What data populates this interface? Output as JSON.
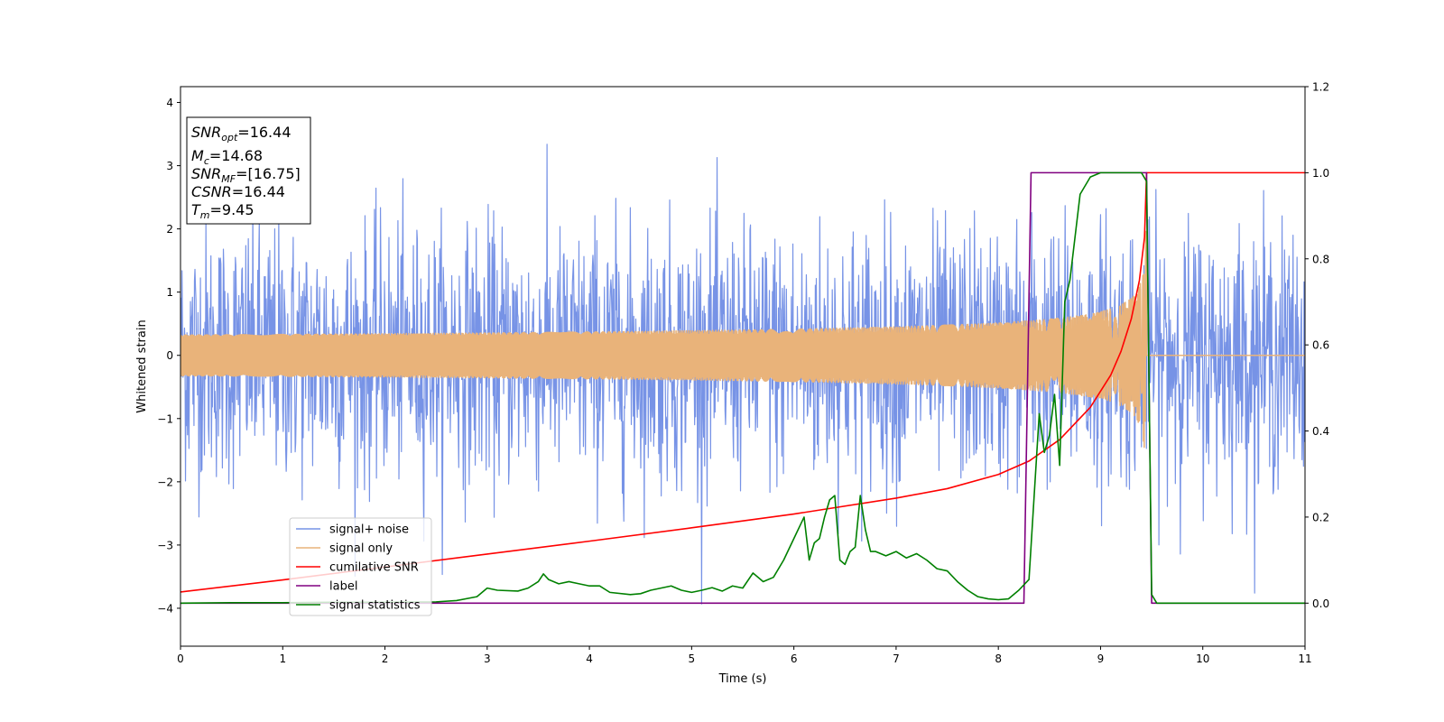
{
  "chart_data": {
    "type": "line",
    "xlabel": "Time (s)",
    "ylabel": "Whitened strain",
    "xlim": [
      0,
      11
    ],
    "ylim": [
      -4.6,
      4.25
    ],
    "y2lim": [
      -0.1,
      1.2
    ],
    "xticks": [
      0,
      1,
      2,
      3,
      4,
      5,
      6,
      7,
      8,
      9,
      10,
      11
    ],
    "yticks": [
      -4,
      -3,
      -2,
      -1,
      0,
      1,
      2,
      3,
      4
    ],
    "y2ticks": [
      0.0,
      0.2,
      0.4,
      0.6,
      0.8,
      1.0,
      1.2
    ],
    "xtick_labels": [
      "0",
      "1",
      "2",
      "3",
      "4",
      "5",
      "6",
      "7",
      "8",
      "9",
      "10",
      "11"
    ],
    "ytick_labels": [
      "−4",
      "−3",
      "−2",
      "−1",
      "0",
      "1",
      "2",
      "3",
      "4"
    ],
    "y2tick_labels": [
      "0.0",
      "0.2",
      "0.4",
      "0.6",
      "0.8",
      "1.0",
      "1.2"
    ],
    "grid": false,
    "legend_position": "lower-left",
    "annotation": {
      "snr_opt": {
        "sym": "SNR",
        "sub": "opt",
        "value": "=16.44"
      },
      "mc": {
        "sym": "M",
        "sub": "c",
        "value": "=14.68"
      },
      "snr_mf": {
        "sym": "SNR",
        "sub": "MF",
        "value": "=[16.75]"
      },
      "csnr": {
        "sym": "CSNR",
        "sub": "",
        "value": "=16.44"
      },
      "tm": {
        "sym": "T",
        "sub": "m",
        "value": "=9.45"
      }
    },
    "series": [
      {
        "name": "signal+ noise",
        "axis": "left",
        "color": "#7793e6",
        "kind": "noise",
        "noise_sd": 1.0,
        "sample_rate": 205,
        "x_range": [
          0,
          11
        ]
      },
      {
        "name": "signal only",
        "axis": "left",
        "color": "#e9b37a",
        "kind": "chirp",
        "merger_time": 9.45,
        "peak_amplitude": 3.0,
        "x_range": [
          0,
          11
        ]
      },
      {
        "name": "cumilative SNR",
        "axis": "right",
        "color": "#ff0000",
        "x": [
          0,
          1,
          2,
          3,
          4,
          5,
          6,
          7,
          7.5,
          8,
          8.3,
          8.6,
          8.9,
          9.1,
          9.2,
          9.3,
          9.38,
          9.43,
          9.45,
          11
        ],
        "y": [
          0.026,
          0.054,
          0.084,
          0.114,
          0.144,
          0.175,
          0.207,
          0.244,
          0.266,
          0.299,
          0.33,
          0.38,
          0.455,
          0.53,
          0.585,
          0.66,
          0.75,
          0.85,
          1.0,
          1.0
        ]
      },
      {
        "name": "label",
        "axis": "right",
        "color": "#800080",
        "x": [
          0,
          8.25,
          8.32,
          9.45,
          9.5,
          11
        ],
        "y": [
          0,
          0,
          1,
          1,
          0,
          0
        ]
      },
      {
        "name": "signal statistics",
        "axis": "right",
        "color": "#008000",
        "x": [
          0,
          0.5,
          1,
          1.5,
          2,
          2.5,
          2.7,
          2.9,
          3.0,
          3.1,
          3.3,
          3.4,
          3.5,
          3.55,
          3.6,
          3.7,
          3.8,
          3.9,
          4.0,
          4.1,
          4.2,
          4.4,
          4.5,
          4.6,
          4.7,
          4.8,
          4.9,
          5.0,
          5.1,
          5.2,
          5.3,
          5.4,
          5.5,
          5.6,
          5.7,
          5.8,
          5.9,
          6.0,
          6.1,
          6.15,
          6.2,
          6.25,
          6.3,
          6.35,
          6.4,
          6.45,
          6.5,
          6.55,
          6.6,
          6.65,
          6.7,
          6.75,
          6.8,
          6.85,
          6.9,
          7.0,
          7.1,
          7.2,
          7.3,
          7.4,
          7.5,
          7.6,
          7.7,
          7.8,
          7.9,
          8.0,
          8.1,
          8.2,
          8.3,
          8.4,
          8.45,
          8.5,
          8.55,
          8.6,
          8.65,
          8.7,
          8.8,
          8.9,
          9.0,
          9.1,
          9.2,
          9.3,
          9.4,
          9.45,
          9.5,
          9.55,
          10,
          11
        ],
        "y": [
          0.0,
          0.001,
          0.001,
          0.002,
          0.002,
          0.003,
          0.006,
          0.015,
          0.035,
          0.03,
          0.028,
          0.035,
          0.05,
          0.068,
          0.055,
          0.045,
          0.05,
          0.045,
          0.04,
          0.04,
          0.025,
          0.02,
          0.022,
          0.03,
          0.035,
          0.04,
          0.03,
          0.025,
          0.03,
          0.036,
          0.028,
          0.04,
          0.035,
          0.07,
          0.05,
          0.06,
          0.1,
          0.15,
          0.2,
          0.1,
          0.14,
          0.15,
          0.2,
          0.24,
          0.25,
          0.1,
          0.09,
          0.12,
          0.13,
          0.25,
          0.17,
          0.12,
          0.12,
          0.115,
          0.11,
          0.12,
          0.105,
          0.115,
          0.1,
          0.08,
          0.075,
          0.05,
          0.03,
          0.015,
          0.01,
          0.008,
          0.01,
          0.03,
          0.055,
          0.44,
          0.35,
          0.39,
          0.485,
          0.32,
          0.7,
          0.75,
          0.95,
          0.99,
          1.0,
          1.0,
          1.0,
          1.0,
          1.0,
          0.98,
          0.02,
          0.0,
          0.0,
          0.0
        ]
      }
    ]
  }
}
